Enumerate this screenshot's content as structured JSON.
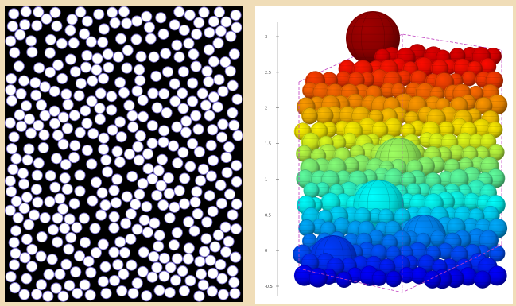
{
  "left_figure": {
    "kind": "2D circle packing (white discs on black background)",
    "disc_fill": "#ffffff",
    "disc_stroke": "#7b6fd0",
    "background": "#000000"
  },
  "right_figure": {
    "kind": "3D sphere packing in box",
    "box_edge_color": "#c040c0",
    "colormap": "jet",
    "z_ticks": [
      "3",
      "2.5",
      "2",
      "1.5",
      "1",
      "0.5",
      "0",
      "-0.5"
    ]
  },
  "page_background": "#F0DDB8"
}
